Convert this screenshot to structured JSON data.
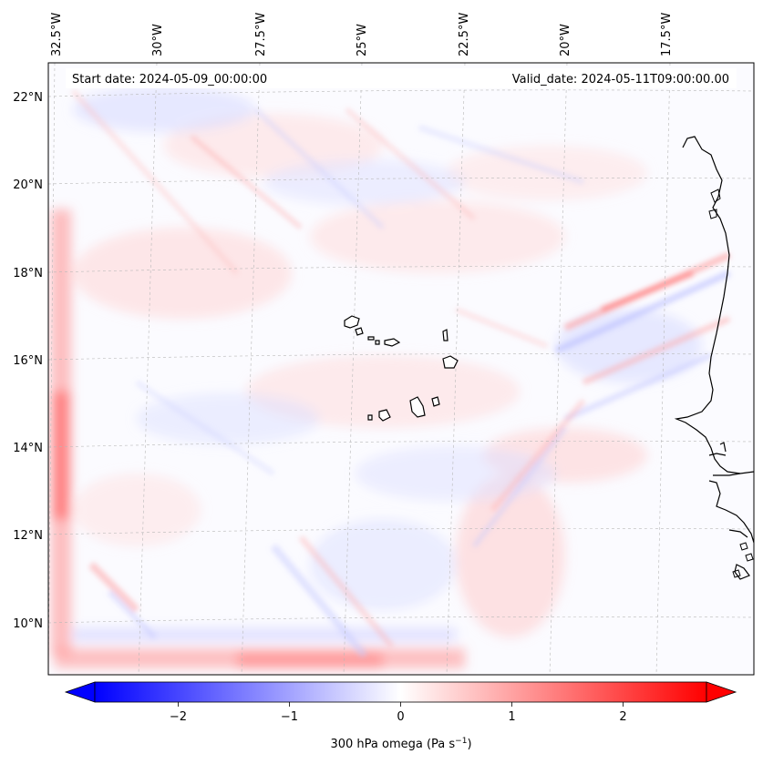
{
  "map": {
    "annotations": {
      "start_date": "Start date: 2024-05-09_00:00:00",
      "valid_date": "Valid_date: 2024-05-11T09:00:00.00"
    },
    "longitude_labels": [
      "32.5°W",
      "30°W",
      "27.5°W",
      "25°W",
      "22.5°W",
      "20°W",
      "17.5°W"
    ],
    "latitude_labels": [
      "22°N",
      "20°N",
      "18°N",
      "16°N",
      "14°N",
      "12°N",
      "10°N"
    ],
    "extent": {
      "lon_min": -33.0,
      "lon_max": -16.0,
      "lat_min": 9.0,
      "lat_max": 22.8
    },
    "field": {
      "variable": "300 hPa omega",
      "units": "Pa s^-1",
      "zero_color": "#ffffff",
      "negative_color": "#0000ff",
      "positive_color": "#ff0000"
    }
  },
  "colorbar": {
    "label_main": "300 hPa omega (Pa s",
    "label_exponent": "−1",
    "label_close": ")",
    "min": -2.75,
    "max": 2.75,
    "ticks": [
      {
        "value": -2,
        "label": "−2"
      },
      {
        "value": -1,
        "label": "−1"
      },
      {
        "value": 0,
        "label": "0"
      },
      {
        "value": 1,
        "label": "1"
      },
      {
        "value": 2,
        "label": "2"
      }
    ]
  }
}
